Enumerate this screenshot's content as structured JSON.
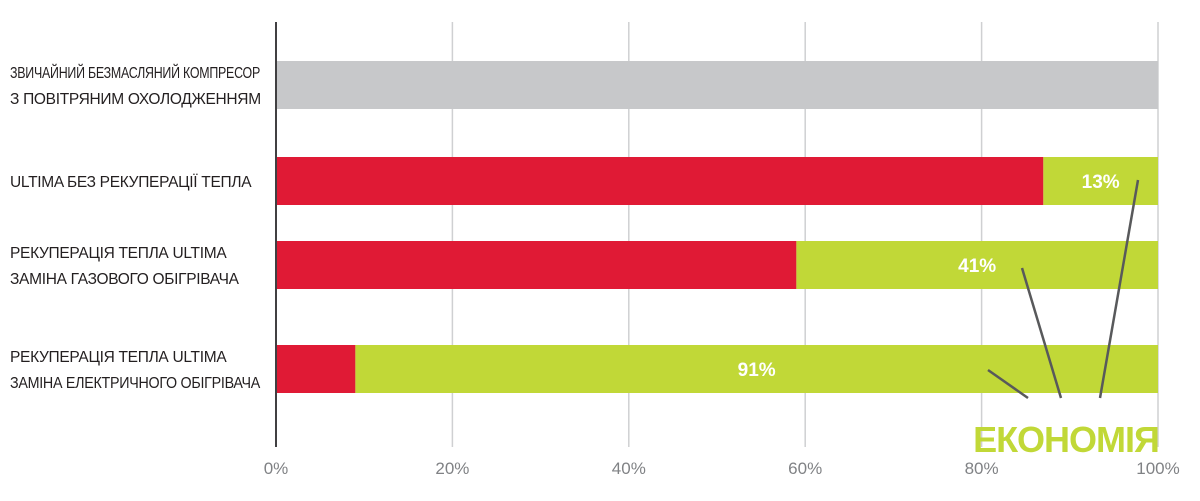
{
  "chart_data": {
    "type": "bar",
    "orientation": "horizontal",
    "stacked": true,
    "categories": [
      [
        "ЗВИЧАЙНИЙ БЕЗМАСЛЯНИЙ КОМПРЕСОР",
        "З ПОВІТРЯНИМ ОХОЛОДЖЕННЯМ"
      ],
      [
        "ULTIMA БЕЗ РЕКУПЕРАЦІЇ ТЕПЛА"
      ],
      [
        "РЕКУПЕРАЦІЯ ТЕПЛА ULTIMA",
        "ЗАМІНА ГАЗОВОГО ОБІГРІВАЧА"
      ],
      [
        "РЕКУПЕРАЦІЯ ТЕПЛА ULTIMA",
        "ЗАМІНА ЕЛЕКТРИЧНОГО ОБІГРІВАЧА"
      ]
    ],
    "series": [
      {
        "values": [
          100,
          87,
          59,
          9
        ],
        "colors": [
          "#c7c8ca",
          "#e01a35",
          "#e01a35",
          "#e01a35"
        ]
      },
      {
        "values": [
          0,
          13,
          41,
          91
        ],
        "color": "#c1d837",
        "labels": [
          "",
          "13%",
          "41%",
          "91%"
        ]
      }
    ],
    "xlim": [
      0,
      100
    ],
    "xticks": [
      0,
      20,
      40,
      60,
      80,
      100
    ],
    "xtick_labels": [
      "0%",
      "20%",
      "40%",
      "60%",
      "80%",
      "100%"
    ],
    "grid": true,
    "annotation": {
      "text": "ЕКОНОМІЯ",
      "color": "#c1d837"
    }
  }
}
